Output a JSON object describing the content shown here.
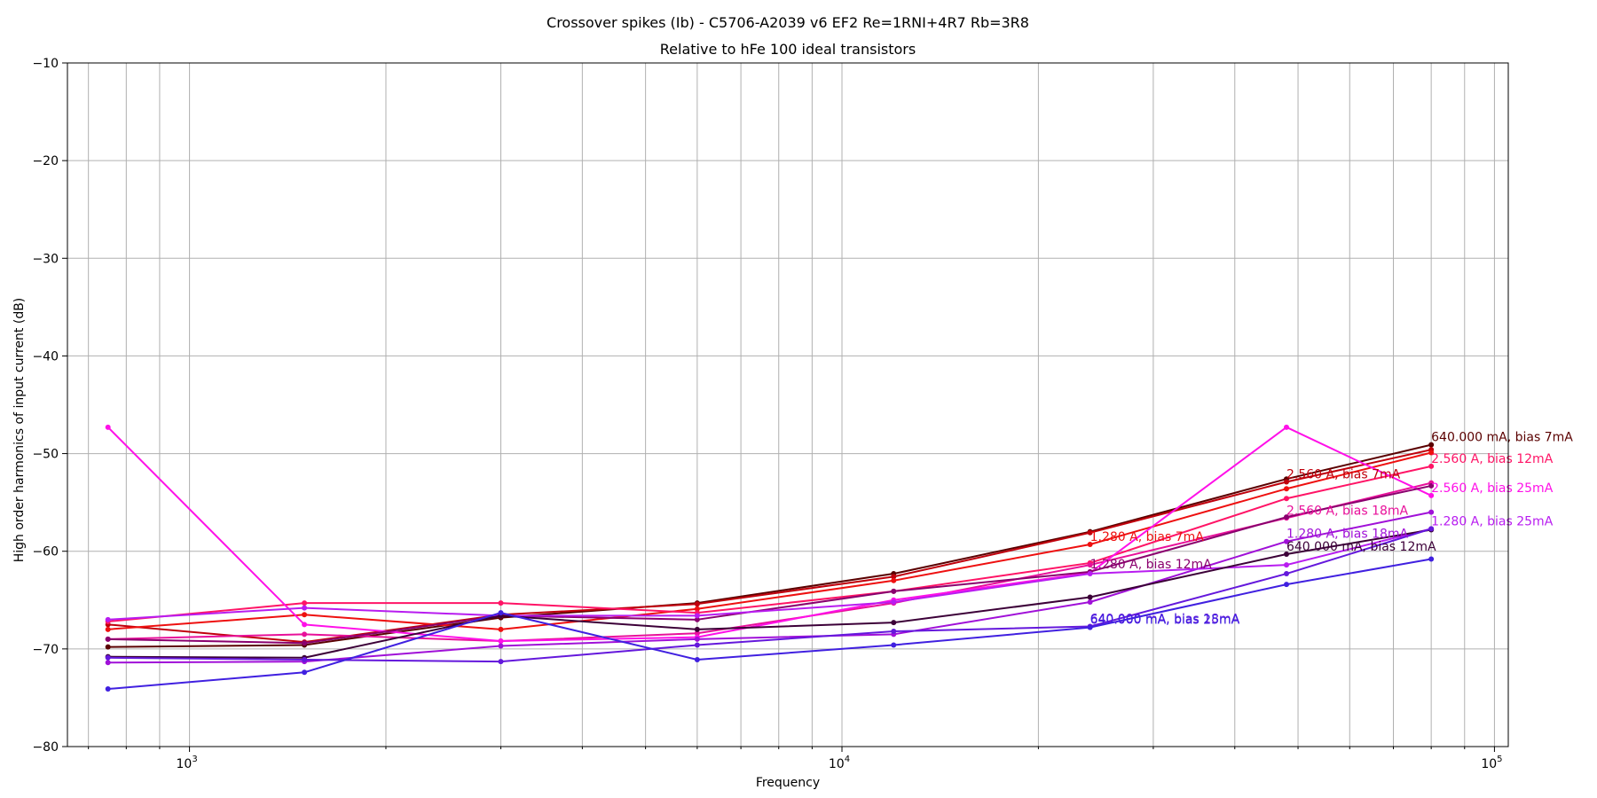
{
  "chart_data": {
    "type": "line",
    "title": "Crossover spikes (Ib) - C5706-A2039 v6 EF2 Re=1RNI+4R7 Rb=3R8",
    "subtitle": "Relative to hFe 100 ideal transistors",
    "xlabel": "Frequency",
    "ylabel": "High order harmonics of input current (dB)",
    "xscale": "log",
    "xlim": [
      650,
      105000
    ],
    "ylim": [
      -80,
      -10
    ],
    "grid": true,
    "x": [
      750,
      1500,
      3000,
      6000,
      12000,
      24000,
      48000,
      80000
    ],
    "x_ticks": [
      {
        "value": 1000,
        "base": "10",
        "exp": "3"
      },
      {
        "value": 10000,
        "base": "10",
        "exp": "4"
      },
      {
        "value": 100000,
        "base": "10",
        "exp": "5"
      }
    ],
    "y_ticks": [
      {
        "value": -10,
        "label": "−10"
      },
      {
        "value": -20,
        "label": "−20"
      },
      {
        "value": -30,
        "label": "−30"
      },
      {
        "value": -40,
        "label": "−40"
      },
      {
        "value": -50,
        "label": "−50"
      },
      {
        "value": -60,
        "label": "−60"
      },
      {
        "value": -70,
        "label": "−70"
      },
      {
        "value": -80,
        "label": "−80"
      }
    ],
    "series": [
      {
        "name": "640.000 mA, bias 7mA",
        "color": "#5a0000",
        "label_at": 7,
        "values": [
          -69.8,
          -69.6,
          -66.8,
          -65.3,
          -62.3,
          -58.0,
          -52.6,
          -49.1
        ]
      },
      {
        "name": "2.560 A, bias 7mA",
        "color": "#c0000c",
        "label_at": 6,
        "values": [
          -67.5,
          -69.3,
          -66.5,
          -65.4,
          -62.6,
          -58.1,
          -52.9,
          -49.6
        ]
      },
      {
        "name": "1.280 A, bias 7mA",
        "color": "#ee1010",
        "label_at": 5,
        "values": [
          -68.0,
          -66.5,
          -68.0,
          -65.9,
          -63.0,
          -59.3,
          -53.6,
          -49.9
        ]
      },
      {
        "name": "2.560 A, bias 12mA",
        "color": "#ff1466",
        "label_at": 7,
        "values": [
          -67.2,
          -65.3,
          -65.3,
          -66.3,
          -64.1,
          -61.2,
          -54.6,
          -51.3
        ]
      },
      {
        "name": "2.560 A, bias 18mA",
        "color": "#e8109a",
        "label_at": 6,
        "values": [
          -69.0,
          -68.5,
          -69.2,
          -68.4,
          -65.3,
          -61.4,
          -56.6,
          -53.0
        ]
      },
      {
        "name": "2.560 A, bias 25mA",
        "color": "#ff10e8",
        "label_at": 7,
        "values": [
          -47.3,
          -67.5,
          -69.2,
          -68.8,
          -65.0,
          -62.2,
          -47.3,
          -54.3
        ]
      },
      {
        "name": "1.280 A, bias 12mA",
        "color": "#8a006e",
        "label_at": 5,
        "values": [
          -69.0,
          -69.4,
          -66.6,
          -67.0,
          -64.1,
          -62.1,
          -56.5,
          -53.3
        ]
      },
      {
        "name": "1.280 A, bias 18mA",
        "color": "#a010d8",
        "label_at": 6,
        "values": [
          -71.4,
          -71.3,
          -69.7,
          -69.0,
          -68.5,
          -65.2,
          -59.0,
          -56.0
        ]
      },
      {
        "name": "1.280 A, bias 25mA",
        "color": "#b81cf0",
        "label_at": 7,
        "values": [
          -67.0,
          -65.8,
          -66.6,
          -66.6,
          -65.2,
          -62.3,
          -61.4,
          -57.7
        ]
      },
      {
        "name": "640.000 mA, bias 12mA",
        "color": "#3c0038",
        "label_at": 6,
        "values": [
          -70.8,
          -70.9,
          -66.6,
          -68.0,
          -67.3,
          -64.7,
          -60.3,
          -57.8
        ]
      },
      {
        "name": "640.000 mA, bias 18mA",
        "color": "#6418dc",
        "label_at": 5,
        "values": [
          -70.9,
          -71.1,
          -71.3,
          -69.6,
          -68.2,
          -67.7,
          -62.3,
          -57.7
        ]
      },
      {
        "name": "640.000 mA, bias 25mA",
        "color": "#4020e0",
        "label_at": 5,
        "values": [
          -74.1,
          -72.4,
          -66.3,
          -71.1,
          -69.6,
          -67.8,
          -63.4,
          -60.8
        ]
      }
    ]
  }
}
